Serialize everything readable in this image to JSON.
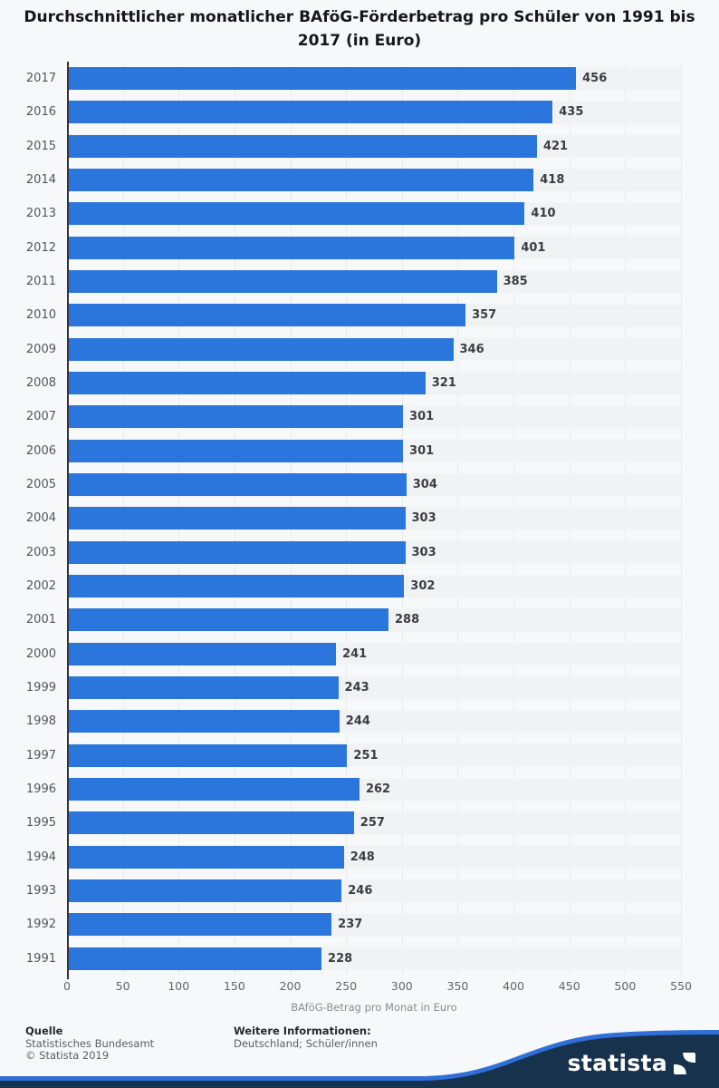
{
  "title": "Durchschnittlicher monatlicher BAföG-Förderbetrag pro Schüler von 1991 bis 2017 (in Euro)",
  "chart_data": {
    "type": "bar",
    "orientation": "horizontal",
    "categories": [
      "2017",
      "2016",
      "2015",
      "2014",
      "2013",
      "2012",
      "2011",
      "2010",
      "2009",
      "2008",
      "2007",
      "2006",
      "2005",
      "2004",
      "2003",
      "2002",
      "2001",
      "2000",
      "1999",
      "1998",
      "1997",
      "1996",
      "1995",
      "1994",
      "1993",
      "1992",
      "1991"
    ],
    "values": [
      456,
      435,
      421,
      418,
      410,
      401,
      385,
      357,
      346,
      321,
      301,
      301,
      304,
      303,
      303,
      302,
      288,
      241,
      243,
      244,
      251,
      262,
      257,
      248,
      246,
      237,
      228
    ],
    "title": "Durchschnittlicher monatlicher BAföG-Förderbetrag pro Schüler von 1991 bis 2017 (in Euro)",
    "xlabel": "BAföG-Betrag pro Monat in Euro",
    "ylabel": "",
    "xlim": [
      0,
      550
    ],
    "x_ticks": [
      0,
      50,
      100,
      150,
      200,
      250,
      300,
      350,
      400,
      450,
      500,
      550
    ],
    "grid": true,
    "value_labels": true,
    "legend": "none",
    "bar_color": "#2a76dc"
  },
  "footer": {
    "source_label": "Quelle",
    "source_lines": [
      "Statistisches Bundesamt",
      "© Statista 2019"
    ],
    "info_label": "Weitere Informationen:",
    "info_lines": [
      "Deutschland; Schüler/innen"
    ],
    "brand": "statista"
  },
  "colors": {
    "bar": "#2a76dc",
    "navy": "#16324d",
    "stripe_blue": "#2f6fd8",
    "background": "#f7f8f9"
  }
}
